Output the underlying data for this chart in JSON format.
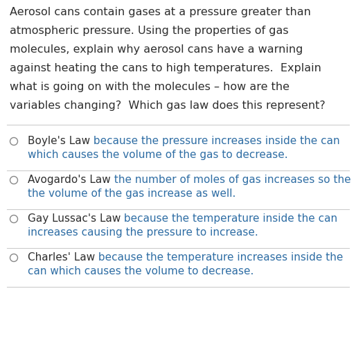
{
  "background_color": "#ffffff",
  "dark_color": "#2e2e2e",
  "blue_color": "#2e6da4",
  "question_lines": [
    "Aerosol cans contain gases at a pressure greater than",
    "atmospheric pressure. Using the properties of gas",
    "molecules, explain why aerosol cans have a warning",
    "against heating the cans to high temperatures.  Explain",
    "what is going on with the molecules – how are the",
    "variables changing?  Which gas law does this represent?"
  ],
  "options": [
    {
      "label": "Boyle's Law",
      "rest_line1": " because the pressure increases inside the can",
      "line2": "which causes the volume of the gas to decrease."
    },
    {
      "label": "Avogardo's Law",
      "rest_line1": " the number of moles of gas increases so the",
      "line2": "the volume of the gas increase as well."
    },
    {
      "label": "Gay Lussac's Law",
      "rest_line1": " because the temperature inside the can",
      "line2": "increases causing the pressure to increase."
    },
    {
      "label": "Charles' Law",
      "rest_line1": " because the temperature increases inside the",
      "line2": "can which causes the volume to decrease."
    }
  ],
  "figsize": [
    5.14,
    5.08
  ],
  "dpi": 100
}
